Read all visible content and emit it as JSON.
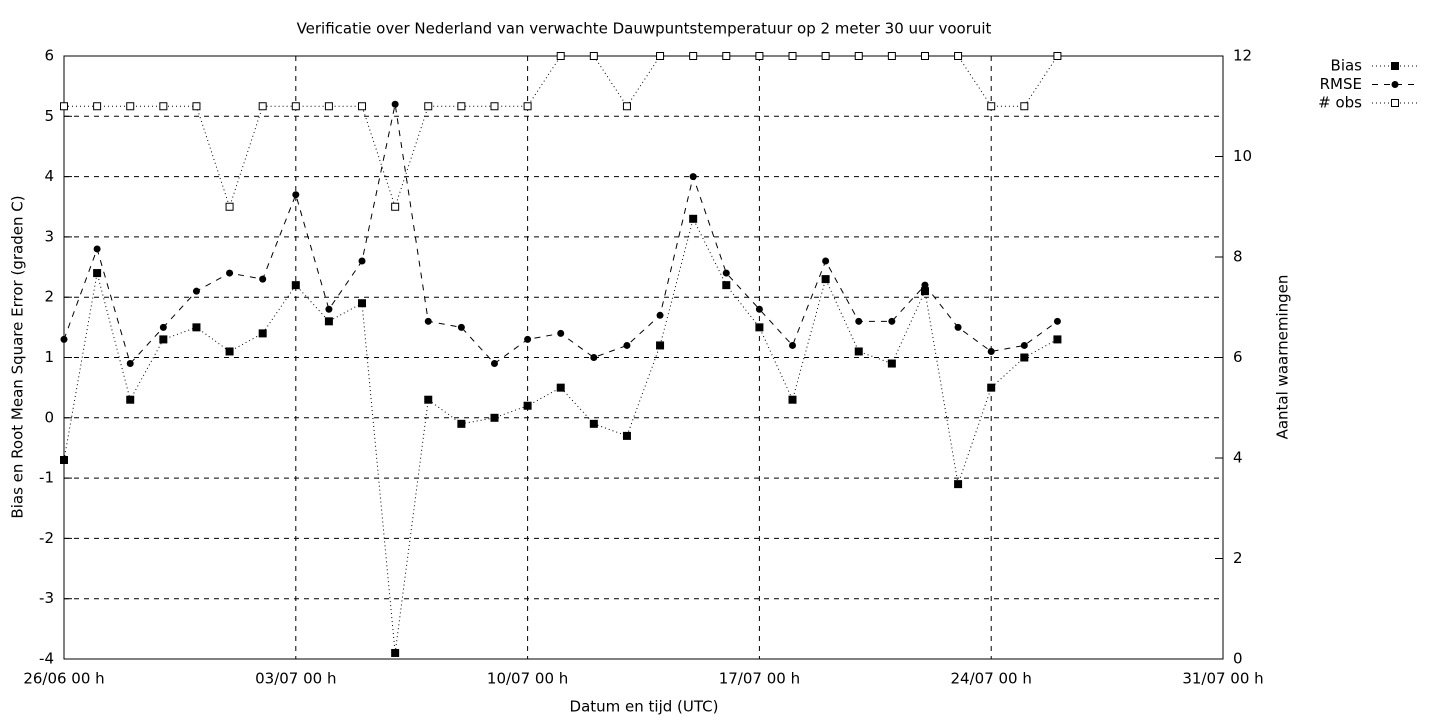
{
  "chart_data": {
    "type": "line",
    "title": "Verificatie over Nederland van verwachte Dauwpuntstemperatuur op 2 meter 30 uur vooruit",
    "x_label": "Datum en tijd (UTC)",
    "y_label": "Bias en Root Mean Square Error (graden C)",
    "y2_label": "Aantal waarnemingen",
    "x": [
      "26/06 00 h",
      "27/06 00 h",
      "28/06 00 h",
      "29/06 00 h",
      "30/06 00 h",
      "01/07 00 h",
      "02/07 00 h",
      "03/07 00 h",
      "04/07 00 h",
      "05/07 00 h",
      "06/07 00 h",
      "07/07 00 h",
      "08/07 00 h",
      "09/07 00 h",
      "10/07 00 h",
      "11/07 00 h",
      "12/07 00 h",
      "13/07 00 h",
      "14/07 00 h",
      "15/07 00 h",
      "16/07 00 h",
      "17/07 00 h",
      "18/07 00 h",
      "19/07 00 h",
      "20/07 00 h",
      "21/07 00 h",
      "22/07 00 h",
      "23/07 00 h",
      "24/07 00 h",
      "25/07 00 h",
      "26/07 00 h"
    ],
    "xlim": [
      "26/06 00 h",
      "31/07 00 h"
    ],
    "xticks": [
      "26/06 00 h",
      "03/07 00 h",
      "10/07 00 h",
      "17/07 00 h",
      "24/07 00 h",
      "31/07 00 h"
    ],
    "ylim": [
      -4,
      6
    ],
    "yticks": [
      -4,
      -3,
      -2,
      -1,
      0,
      1,
      2,
      3,
      4,
      5,
      6
    ],
    "y2lim": [
      0,
      12
    ],
    "y2ticks": [
      0,
      2,
      4,
      6,
      8,
      10,
      12
    ],
    "grid": true,
    "legend": "top-right",
    "series": [
      {
        "name": "Bias",
        "color": "#000000",
        "line_style": "dotted",
        "marker": "filled-square",
        "values": [
          -0.7,
          2.4,
          0.3,
          1.3,
          1.5,
          1.1,
          1.4,
          2.2,
          1.6,
          1.9,
          -3.9,
          0.3,
          -0.1,
          0.0,
          0.2,
          0.5,
          -0.1,
          -0.3,
          1.2,
          3.3,
          2.2,
          1.5,
          0.3,
          2.3,
          1.1,
          0.9,
          2.1,
          -1.1,
          0.5,
          1.0,
          1.3
        ]
      },
      {
        "name": "RMSE",
        "color": "#000000",
        "line_style": "dashed",
        "marker": "filled-circle",
        "values": [
          1.3,
          2.8,
          0.9,
          1.5,
          2.1,
          2.4,
          2.3,
          3.7,
          1.8,
          2.6,
          5.2,
          1.6,
          1.5,
          0.9,
          1.3,
          1.4,
          1.0,
          1.2,
          1.7,
          4.0,
          2.4,
          1.8,
          1.2,
          2.6,
          1.6,
          1.6,
          2.2,
          1.5,
          1.1,
          1.2,
          1.6
        ]
      },
      {
        "name": "# obs",
        "color": "#000000",
        "line_style": "dotted",
        "marker": "open-square",
        "axis": "y2",
        "values": [
          11,
          11,
          11,
          11,
          11,
          9,
          11,
          11,
          11,
          11,
          9,
          11,
          11,
          11,
          11,
          12,
          12,
          11,
          12,
          12,
          12,
          12,
          12,
          12,
          12,
          12,
          12,
          12,
          11,
          11,
          12
        ]
      }
    ]
  }
}
